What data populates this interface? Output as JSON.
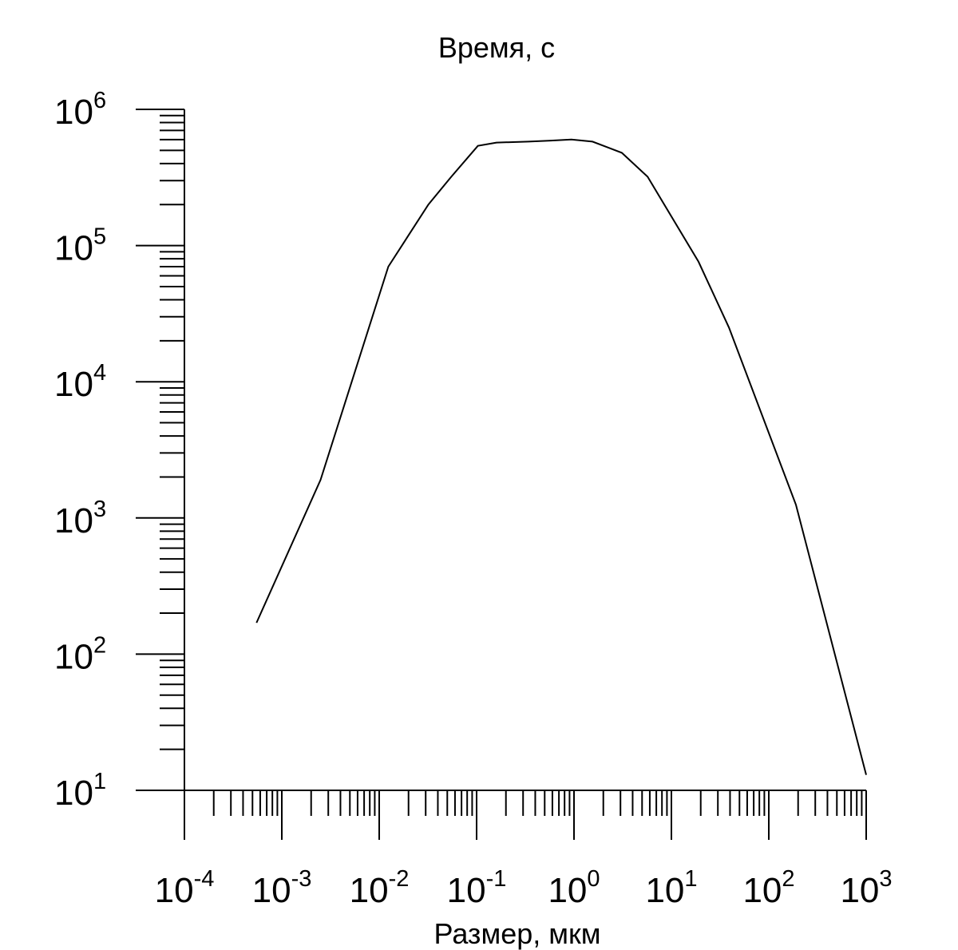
{
  "chart_data": {
    "type": "line",
    "ylabel": "Время, с",
    "xlabel": "Размер, мкм",
    "x_scale": "log",
    "y_scale": "log",
    "xlim": [
      0.0001,
      1000
    ],
    "ylim": [
      10,
      1000000
    ],
    "grid": false,
    "legend": "none",
    "x_ticks": [
      {
        "base": "10",
        "exp": "-4"
      },
      {
        "base": "10",
        "exp": "-3"
      },
      {
        "base": "10",
        "exp": "-2"
      },
      {
        "base": "10",
        "exp": "-1"
      },
      {
        "base": "10",
        "exp": "0"
      },
      {
        "base": "10",
        "exp": "1"
      },
      {
        "base": "10",
        "exp": "2"
      },
      {
        "base": "10",
        "exp": "3"
      }
    ],
    "y_ticks": [
      {
        "base": "10",
        "exp": "1"
      },
      {
        "base": "10",
        "exp": "2"
      },
      {
        "base": "10",
        "exp": "3"
      },
      {
        "base": "10",
        "exp": "4"
      },
      {
        "base": "10",
        "exp": "5"
      },
      {
        "base": "10",
        "exp": "6"
      }
    ],
    "series": [
      {
        "color": "#000000",
        "x": [
          0.00055,
          0.0025,
          0.0124,
          0.032,
          0.055,
          0.103,
          0.16,
          0.34,
          0.58,
          0.94,
          1.55,
          3.1,
          5.7,
          19,
          39,
          190,
          1000
        ],
        "y": [
          170,
          1900,
          70000,
          200000,
          320000,
          540000,
          570000,
          580000,
          590000,
          600000,
          580000,
          480000,
          320000,
          76000,
          25000,
          1250,
          13
        ]
      }
    ]
  }
}
